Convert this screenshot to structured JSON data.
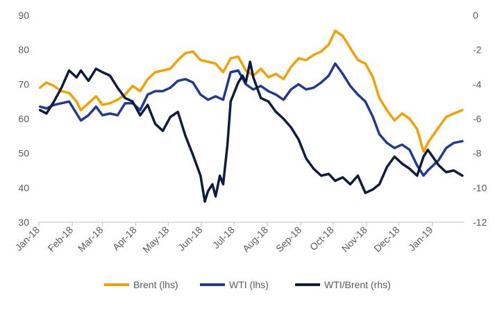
{
  "chart_data": {
    "type": "line",
    "title": "",
    "xlabel": "",
    "ylabel_left": "",
    "ylabel_right": "",
    "x_ticks": [
      "Jan-18",
      "Feb-18",
      "Mar-18",
      "Apr-18",
      "May-18",
      "Jun-18",
      "Jul-18",
      "Aug-18",
      "Sep-18",
      "Oct-18",
      "Nov-18",
      "Dec-18",
      "Jan-19"
    ],
    "y_left": {
      "min": 30,
      "max": 90,
      "ticks": [
        30,
        40,
        50,
        60,
        70,
        80,
        90
      ]
    },
    "y_right": {
      "min": -12,
      "max": 0,
      "ticks": [
        -12,
        -10,
        -8,
        -6,
        -4,
        -2,
        0
      ]
    },
    "grid": false,
    "legend_position": "bottom",
    "colors": {
      "brent": "#F59F00",
      "wti": "#1F3A93",
      "spread": "#0D1B3E",
      "axis": "#bfbfbf",
      "text": "#595959"
    },
    "series": [
      {
        "name": "Brent (lhs)",
        "axis": "left",
        "color": "#F59F00",
        "points": [
          [
            "2018-01-02",
            69.0
          ],
          [
            "2018-01-08",
            70.5
          ],
          [
            "2018-01-15",
            69.5
          ],
          [
            "2018-01-22",
            68.0
          ],
          [
            "2018-01-29",
            67.5
          ],
          [
            "2018-02-05",
            65.0
          ],
          [
            "2018-02-09",
            62.5
          ],
          [
            "2018-02-16",
            64.5
          ],
          [
            "2018-02-23",
            66.5
          ],
          [
            "2018-03-01",
            64.0
          ],
          [
            "2018-03-08",
            64.5
          ],
          [
            "2018-03-15",
            65.5
          ],
          [
            "2018-03-22",
            67.0
          ],
          [
            "2018-03-29",
            69.5
          ],
          [
            "2018-04-05",
            68.0
          ],
          [
            "2018-04-12",
            71.5
          ],
          [
            "2018-04-19",
            73.5
          ],
          [
            "2018-04-26",
            74.0
          ],
          [
            "2018-05-03",
            74.5
          ],
          [
            "2018-05-10",
            77.0
          ],
          [
            "2018-05-17",
            79.0
          ],
          [
            "2018-05-24",
            79.5
          ],
          [
            "2018-05-31",
            77.0
          ],
          [
            "2018-06-07",
            76.5
          ],
          [
            "2018-06-14",
            76.0
          ],
          [
            "2018-06-21",
            73.5
          ],
          [
            "2018-06-28",
            77.5
          ],
          [
            "2018-07-05",
            78.0
          ],
          [
            "2018-07-12",
            74.0
          ],
          [
            "2018-07-19",
            72.5
          ],
          [
            "2018-07-26",
            74.5
          ],
          [
            "2018-08-02",
            72.0
          ],
          [
            "2018-08-09",
            73.0
          ],
          [
            "2018-08-16",
            71.5
          ],
          [
            "2018-08-23",
            75.0
          ],
          [
            "2018-08-30",
            77.5
          ],
          [
            "2018-09-06",
            77.0
          ],
          [
            "2018-09-13",
            78.5
          ],
          [
            "2018-09-20",
            79.5
          ],
          [
            "2018-09-27",
            81.5
          ],
          [
            "2018-10-03",
            85.5
          ],
          [
            "2018-10-10",
            84.0
          ],
          [
            "2018-10-17",
            80.5
          ],
          [
            "2018-10-24",
            77.0
          ],
          [
            "2018-10-31",
            76.0
          ],
          [
            "2018-11-07",
            72.0
          ],
          [
            "2018-11-13",
            66.0
          ],
          [
            "2018-11-20",
            62.5
          ],
          [
            "2018-11-27",
            59.5
          ],
          [
            "2018-12-04",
            61.5
          ],
          [
            "2018-12-11",
            60.0
          ],
          [
            "2018-12-18",
            57.0
          ],
          [
            "2018-12-24",
            50.5
          ],
          [
            "2018-12-28",
            53.0
          ],
          [
            "2019-01-07",
            57.5
          ],
          [
            "2019-01-14",
            60.5
          ],
          [
            "2019-01-21",
            61.5
          ],
          [
            "2019-01-29",
            62.5
          ]
        ]
      },
      {
        "name": "WTI (lhs)",
        "axis": "left",
        "color": "#1F3A93",
        "points": [
          [
            "2018-01-02",
            63.5
          ],
          [
            "2018-01-08",
            63.0
          ],
          [
            "2018-01-15",
            64.0
          ],
          [
            "2018-01-22",
            64.5
          ],
          [
            "2018-01-29",
            65.0
          ],
          [
            "2018-02-05",
            61.5
          ],
          [
            "2018-02-09",
            59.5
          ],
          [
            "2018-02-16",
            61.0
          ],
          [
            "2018-02-23",
            63.5
          ],
          [
            "2018-03-01",
            61.0
          ],
          [
            "2018-03-08",
            61.5
          ],
          [
            "2018-03-15",
            61.0
          ],
          [
            "2018-03-22",
            64.5
          ],
          [
            "2018-03-29",
            64.5
          ],
          [
            "2018-04-05",
            62.5
          ],
          [
            "2018-04-12",
            67.0
          ],
          [
            "2018-04-19",
            68.0
          ],
          [
            "2018-04-26",
            68.0
          ],
          [
            "2018-05-03",
            69.0
          ],
          [
            "2018-05-10",
            71.0
          ],
          [
            "2018-05-17",
            71.5
          ],
          [
            "2018-05-24",
            70.5
          ],
          [
            "2018-05-31",
            67.0
          ],
          [
            "2018-06-07",
            65.5
          ],
          [
            "2018-06-14",
            66.5
          ],
          [
            "2018-06-21",
            65.5
          ],
          [
            "2018-06-28",
            73.5
          ],
          [
            "2018-07-05",
            74.0
          ],
          [
            "2018-07-12",
            70.0
          ],
          [
            "2018-07-19",
            68.5
          ],
          [
            "2018-07-26",
            69.5
          ],
          [
            "2018-08-02",
            68.0
          ],
          [
            "2018-08-09",
            67.0
          ],
          [
            "2018-08-16",
            65.5
          ],
          [
            "2018-08-23",
            68.5
          ],
          [
            "2018-08-30",
            70.0
          ],
          [
            "2018-09-06",
            68.5
          ],
          [
            "2018-09-13",
            69.0
          ],
          [
            "2018-09-20",
            70.5
          ],
          [
            "2018-09-27",
            72.5
          ],
          [
            "2018-10-03",
            76.0
          ],
          [
            "2018-10-10",
            73.0
          ],
          [
            "2018-10-17",
            69.5
          ],
          [
            "2018-10-24",
            67.0
          ],
          [
            "2018-10-31",
            65.0
          ],
          [
            "2018-11-07",
            60.5
          ],
          [
            "2018-11-13",
            55.5
          ],
          [
            "2018-11-20",
            53.0
          ],
          [
            "2018-11-27",
            51.5
          ],
          [
            "2018-12-04",
            52.5
          ],
          [
            "2018-12-11",
            51.0
          ],
          [
            "2018-12-18",
            46.5
          ],
          [
            "2018-12-24",
            43.5
          ],
          [
            "2018-12-28",
            45.0
          ],
          [
            "2019-01-07",
            48.0
          ],
          [
            "2019-01-14",
            51.5
          ],
          [
            "2019-01-21",
            53.0
          ],
          [
            "2019-01-29",
            53.5
          ]
        ]
      },
      {
        "name": "WTI/Brent (rhs)",
        "axis": "right",
        "color": "#0D1B3E",
        "points": [
          [
            "2018-01-02",
            -5.5
          ],
          [
            "2018-01-08",
            -5.7
          ],
          [
            "2018-01-15",
            -5.0
          ],
          [
            "2018-01-22",
            -4.2
          ],
          [
            "2018-01-29",
            -3.2
          ],
          [
            "2018-02-05",
            -3.6
          ],
          [
            "2018-02-09",
            -3.2
          ],
          [
            "2018-02-16",
            -3.8
          ],
          [
            "2018-02-23",
            -3.1
          ],
          [
            "2018-03-01",
            -3.3
          ],
          [
            "2018-03-08",
            -3.5
          ],
          [
            "2018-03-15",
            -4.2
          ],
          [
            "2018-03-22",
            -4.8
          ],
          [
            "2018-03-29",
            -5.0
          ],
          [
            "2018-04-05",
            -5.8
          ],
          [
            "2018-04-12",
            -5.2
          ],
          [
            "2018-04-19",
            -6.3
          ],
          [
            "2018-04-26",
            -6.7
          ],
          [
            "2018-05-03",
            -5.9
          ],
          [
            "2018-05-10",
            -5.6
          ],
          [
            "2018-05-17",
            -7.0
          ],
          [
            "2018-05-24",
            -8.1
          ],
          [
            "2018-05-31",
            -9.3
          ],
          [
            "2018-06-04",
            -10.8
          ],
          [
            "2018-06-07",
            -10.2
          ],
          [
            "2018-06-11",
            -9.8
          ],
          [
            "2018-06-14",
            -10.5
          ],
          [
            "2018-06-18",
            -9.3
          ],
          [
            "2018-06-21",
            -9.8
          ],
          [
            "2018-06-25",
            -7.5
          ],
          [
            "2018-06-28",
            -5.0
          ],
          [
            "2018-07-05",
            -3.9
          ],
          [
            "2018-07-09",
            -3.5
          ],
          [
            "2018-07-12",
            -3.9
          ],
          [
            "2018-07-16",
            -2.7
          ],
          [
            "2018-07-19",
            -3.6
          ],
          [
            "2018-07-26",
            -4.8
          ],
          [
            "2018-08-02",
            -5.0
          ],
          [
            "2018-08-09",
            -5.6
          ],
          [
            "2018-08-16",
            -6.0
          ],
          [
            "2018-08-23",
            -6.5
          ],
          [
            "2018-08-30",
            -7.2
          ],
          [
            "2018-09-06",
            -8.3
          ],
          [
            "2018-09-13",
            -8.9
          ],
          [
            "2018-09-20",
            -9.3
          ],
          [
            "2018-09-27",
            -9.2
          ],
          [
            "2018-10-03",
            -9.6
          ],
          [
            "2018-10-10",
            -9.4
          ],
          [
            "2018-10-17",
            -9.8
          ],
          [
            "2018-10-24",
            -9.3
          ],
          [
            "2018-10-31",
            -10.3
          ],
          [
            "2018-11-07",
            -10.1
          ],
          [
            "2018-11-13",
            -9.8
          ],
          [
            "2018-11-20",
            -8.8
          ],
          [
            "2018-11-27",
            -8.2
          ],
          [
            "2018-12-04",
            -8.6
          ],
          [
            "2018-12-11",
            -8.9
          ],
          [
            "2018-12-18",
            -9.3
          ],
          [
            "2018-12-24",
            -8.2
          ],
          [
            "2018-12-28",
            -7.8
          ],
          [
            "2019-01-07",
            -8.7
          ],
          [
            "2019-01-14",
            -9.1
          ],
          [
            "2019-01-21",
            -9.0
          ],
          [
            "2019-01-29",
            -9.3
          ]
        ]
      }
    ]
  }
}
